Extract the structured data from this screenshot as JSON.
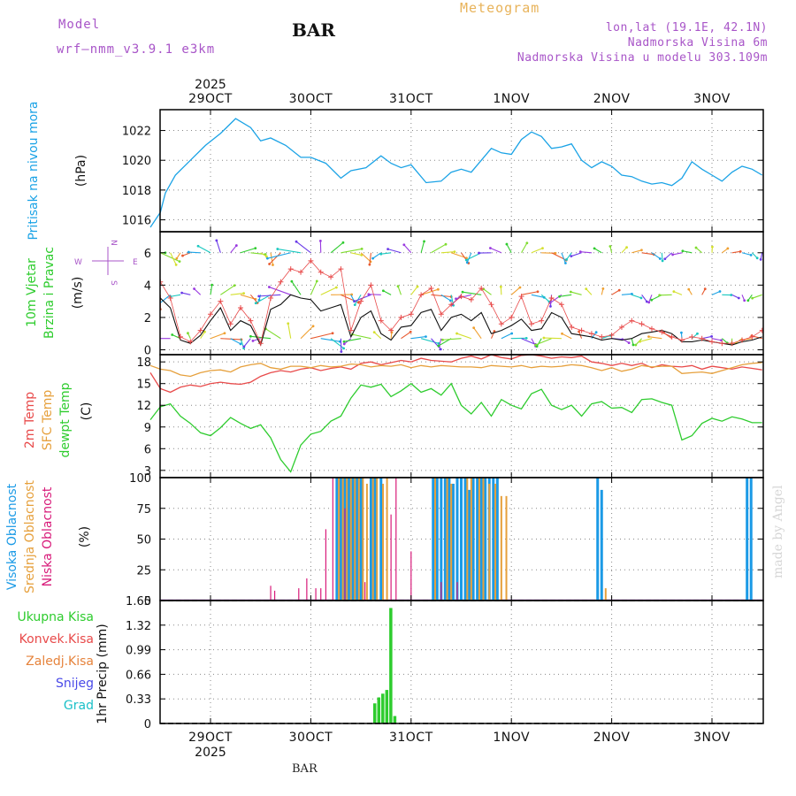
{
  "header": {
    "model_label": "Model",
    "model_name": "wrf—nmm_v3.9.1  e3km",
    "station": "BAR",
    "title": "Meteogram",
    "location": "lon,lat (19.1E, 42.1N)",
    "elevation": "Nadmorska Visina 6m",
    "model_elevation": "Nadmorska Visina u modelu 303.109m",
    "year_top": "2025",
    "year_bottom": "2025",
    "footer_station": "BAR",
    "watermark": "made by Angel"
  },
  "colors": {
    "pressure": "#1ba3e6",
    "temp": "#e84a4a",
    "sfc_temp": "#e6a03c",
    "dewpt": "#2ecc2e",
    "high_cloud": "#1b9ae6",
    "mid_cloud": "#e6a03c",
    "low_cloud": "#d81b7a",
    "precip": "#2ecc2e",
    "wind_speed": "#111111",
    "gust": "#e84a4a"
  },
  "chart_data": [
    {
      "type": "line",
      "id": "pressure",
      "ylabel_left": "Pritisak na nivou mora",
      "unit": "(hPa)",
      "ylim": [
        1015.2,
        1023.4
      ],
      "yticks": [
        "1016",
        "1018",
        "1020",
        "1022"
      ],
      "x_dates": [
        "29OCT",
        "30OCT",
        "31OCT",
        "1NOV",
        "2NOV",
        "3NOV"
      ],
      "x": [
        -0.6,
        -0.5,
        -0.45,
        -0.35,
        -0.2,
        -0.05,
        0.1,
        0.25,
        0.4,
        0.5,
        0.6,
        0.75,
        0.9,
        1.0,
        1.15,
        1.3,
        1.4,
        1.55,
        1.7,
        1.8,
        1.9,
        2.0,
        2.15,
        2.3,
        2.4,
        2.5,
        2.6,
        2.7,
        2.8,
        2.9,
        3.0,
        3.1,
        3.2,
        3.3,
        3.4,
        3.5,
        3.6,
        3.7,
        3.8,
        3.9,
        4.0,
        4.1,
        4.2,
        4.3,
        4.4,
        4.5,
        4.6,
        4.7,
        4.8,
        4.9,
        5.0,
        5.1,
        5.2,
        5.3,
        5.4,
        5.5
      ],
      "values": [
        1015.5,
        1016.5,
        1017.8,
        1019.0,
        1020.0,
        1021.0,
        1021.8,
        1022.8,
        1022.2,
        1021.3,
        1021.5,
        1021.0,
        1020.2,
        1020.2,
        1019.8,
        1018.8,
        1019.3,
        1019.5,
        1020.3,
        1019.8,
        1019.5,
        1019.7,
        1018.5,
        1018.6,
        1019.2,
        1019.4,
        1019.2,
        1020.0,
        1020.8,
        1020.5,
        1020.4,
        1021.4,
        1021.9,
        1021.6,
        1020.8,
        1020.9,
        1021.1,
        1020.0,
        1019.5,
        1019.9,
        1019.6,
        1019.0,
        1018.9,
        1018.6,
        1018.4,
        1018.5,
        1018.3,
        1018.8,
        1019.9,
        1019.4,
        1019.0,
        1018.6,
        1019.2,
        1019.6,
        1019.4,
        1019.0
      ]
    },
    {
      "type": "line",
      "id": "wind",
      "ylabel_left": [
        "10m Vjetar",
        "Brzina i Pravac"
      ],
      "unit": "(m/s)",
      "ylim": [
        -0.3,
        7.3
      ],
      "yticks": [
        "0",
        "2",
        "4",
        "6"
      ],
      "compass": {
        "north": "N",
        "south": "S",
        "west": "W",
        "east": "E"
      },
      "x": [
        -0.6,
        -0.5,
        -0.4,
        -0.3,
        -0.2,
        -0.1,
        0.0,
        0.1,
        0.2,
        0.3,
        0.4,
        0.5,
        0.6,
        0.7,
        0.8,
        0.9,
        1.0,
        1.1,
        1.2,
        1.3,
        1.4,
        1.5,
        1.6,
        1.7,
        1.8,
        1.9,
        2.0,
        2.1,
        2.2,
        2.3,
        2.4,
        2.5,
        2.6,
        2.7,
        2.8,
        2.9,
        3.0,
        3.1,
        3.2,
        3.3,
        3.4,
        3.5,
        3.6,
        3.7,
        3.8,
        3.9,
        4.0,
        4.1,
        4.2,
        4.3,
        4.4,
        4.5,
        4.6,
        4.7,
        4.8,
        4.9,
        5.0,
        5.1,
        5.2,
        5.3,
        5.4,
        5.5
      ],
      "series": [
        {
          "name": "speed",
          "values": [
            1.5,
            3.2,
            2.6,
            0.6,
            0.4,
            0.9,
            1.8,
            2.6,
            1.2,
            1.8,
            1.5,
            0.3,
            2.5,
            2.8,
            3.4,
            3.2,
            3.1,
            2.4,
            2.6,
            2.8,
            0.8,
            2.0,
            2.4,
            1.0,
            0.6,
            1.4,
            1.5,
            2.3,
            2.5,
            1.2,
            2.0,
            2.2,
            1.8,
            2.3,
            1.0,
            1.2,
            1.5,
            1.9,
            1.2,
            1.3,
            2.3,
            2.0,
            1.0,
            0.9,
            0.8,
            0.6,
            0.7,
            0.6,
            0.7,
            1.0,
            1.1,
            1.2,
            1.0,
            0.5,
            0.5,
            0.6,
            0.5,
            0.4,
            0.3,
            0.5,
            0.6,
            0.8
          ]
        },
        {
          "name": "gust",
          "values": [
            2.0,
            4.2,
            3.2,
            0.8,
            0.5,
            1.2,
            2.2,
            3.0,
            1.6,
            2.6,
            1.8,
            0.4,
            3.2,
            4.2,
            5.0,
            4.8,
            5.5,
            4.8,
            4.5,
            5.0,
            1.2,
            3.0,
            4.0,
            1.8,
            1.2,
            2.0,
            2.2,
            3.4,
            3.8,
            2.2,
            2.8,
            3.3,
            3.1,
            3.8,
            2.8,
            1.6,
            2.0,
            3.3,
            1.6,
            1.8,
            3.2,
            2.8,
            1.4,
            1.2,
            1.0,
            0.8,
            0.9,
            1.4,
            1.8,
            1.6,
            1.3,
            1.1,
            0.8,
            0.6,
            0.8,
            0.7,
            0.5,
            0.4,
            0.4,
            0.6,
            0.8,
            1.2
          ]
        }
      ],
      "direction_rows": [
        {
          "row": "6 m/s level",
          "y": 6
        },
        {
          "row": "3.4 m/s level",
          "y": 3.4
        },
        {
          "row": "0.7 m/s level",
          "y": 0.7
        }
      ]
    },
    {
      "type": "line",
      "id": "temperature",
      "ylabel_left": [
        "2m Temp",
        "SFC Temp",
        "dewpt Temp"
      ],
      "unit": "(C)",
      "ylim": [
        2,
        19
      ],
      "yticks": [
        "3",
        "6",
        "9",
        "12",
        "15",
        "18"
      ],
      "x": [
        -0.6,
        -0.5,
        -0.4,
        -0.3,
        -0.2,
        -0.1,
        0.0,
        0.1,
        0.2,
        0.3,
        0.4,
        0.5,
        0.6,
        0.7,
        0.8,
        0.9,
        1.0,
        1.1,
        1.2,
        1.3,
        1.4,
        1.5,
        1.6,
        1.7,
        1.8,
        1.9,
        2.0,
        2.1,
        2.2,
        2.3,
        2.4,
        2.5,
        2.6,
        2.7,
        2.8,
        2.9,
        3.0,
        3.1,
        3.2,
        3.3,
        3.4,
        3.5,
        3.6,
        3.7,
        3.8,
        3.9,
        4.0,
        4.1,
        4.2,
        4.3,
        4.4,
        4.5,
        4.6,
        4.7,
        4.8,
        4.9,
        5.0,
        5.1,
        5.2,
        5.3,
        5.4,
        5.5
      ],
      "series": [
        {
          "name": "2m Temp",
          "values": [
            16.5,
            14.3,
            13.8,
            14.5,
            14.8,
            14.6,
            15.0,
            15.2,
            15.0,
            14.9,
            15.2,
            16.0,
            16.5,
            16.8,
            16.6,
            17.0,
            17.2,
            16.8,
            17.1,
            17.3,
            17.0,
            17.8,
            18.0,
            17.6,
            17.9,
            18.2,
            18.0,
            18.5,
            18.2,
            18.1,
            18.0,
            18.5,
            18.8,
            18.4,
            19.0,
            18.6,
            18.4,
            18.9,
            19.0,
            18.8,
            18.5,
            18.7,
            18.6,
            18.8,
            18.0,
            17.8,
            17.5,
            17.8,
            17.5,
            17.8,
            17.2,
            17.6,
            17.4,
            17.3,
            17.5,
            17.0,
            17.4,
            17.2,
            17.0,
            17.3,
            17.1,
            16.9
          ]
        },
        {
          "name": "SFC Temp",
          "values": [
            17.5,
            17.0,
            16.8,
            16.2,
            16.0,
            16.5,
            16.8,
            16.9,
            16.6,
            17.3,
            17.6,
            17.8,
            17.2,
            17.0,
            17.4,
            17.4,
            17.2,
            17.5,
            17.3,
            17.4,
            17.7,
            17.6,
            17.3,
            17.5,
            17.4,
            17.6,
            17.2,
            17.5,
            17.3,
            17.5,
            17.4,
            17.3,
            17.3,
            17.2,
            17.5,
            17.4,
            17.3,
            17.5,
            17.2,
            17.4,
            17.3,
            17.4,
            17.6,
            17.5,
            17.2,
            16.8,
            17.2,
            16.7,
            17.0,
            17.5,
            17.3,
            17.4,
            17.4,
            16.4,
            16.5,
            16.6,
            16.4,
            16.8,
            17.2,
            17.6,
            17.8,
            17.9
          ]
        },
        {
          "name": "dewpt Temp",
          "values": [
            10.0,
            11.8,
            12.2,
            10.5,
            9.5,
            8.2,
            7.8,
            8.9,
            10.3,
            9.5,
            8.8,
            9.3,
            7.5,
            4.5,
            2.8,
            6.5,
            8.0,
            8.4,
            9.8,
            10.5,
            13.0,
            14.8,
            14.5,
            14.9,
            13.2,
            14.0,
            15.0,
            13.8,
            14.3,
            13.4,
            15.0,
            12.0,
            10.8,
            12.4,
            10.5,
            12.8,
            12.0,
            11.5,
            13.6,
            14.2,
            12.0,
            11.4,
            12.0,
            10.5,
            12.2,
            12.5,
            11.6,
            11.7,
            11.0,
            12.8,
            12.9,
            12.4,
            12.0,
            7.2,
            7.8,
            9.5,
            10.2,
            9.8,
            10.4,
            10.1,
            9.6,
            9.6
          ]
        }
      ]
    },
    {
      "type": "bar",
      "id": "cloud_cover",
      "ylabel_left": [
        "Visoka Oblacnost",
        "Srednja Oblacnost",
        "Niska Oblacnost"
      ],
      "unit": "(%)",
      "ylim": [
        0,
        100
      ],
      "yticks": [
        "0",
        "25",
        "50",
        "75",
        "100"
      ],
      "series": [
        {
          "name": "Visoka Oblacnost",
          "x": [
            1.26,
            1.3,
            1.34,
            1.38,
            1.42,
            1.46,
            1.5,
            1.6,
            1.64,
            1.7,
            2.22,
            2.26,
            2.3,
            2.34,
            2.38,
            2.42,
            2.46,
            2.5,
            2.54,
            2.58,
            2.62,
            2.66,
            2.7,
            2.74,
            2.78,
            2.82,
            2.86,
            3.86,
            3.9,
            5.35,
            5.39
          ],
          "values": [
            100,
            100,
            100,
            100,
            100,
            100,
            100,
            100,
            100,
            100,
            100,
            100,
            100,
            100,
            100,
            95,
            100,
            100,
            100,
            90,
            100,
            100,
            100,
            100,
            100,
            100,
            100,
            100,
            90,
            100,
            100
          ]
        },
        {
          "name": "Srednja Oblacnost",
          "x": [
            1.28,
            1.32,
            1.36,
            1.4,
            1.44,
            1.48,
            1.52,
            1.56,
            1.62,
            1.66,
            1.72,
            1.76,
            2.24,
            2.36,
            2.4,
            2.56,
            2.6,
            2.68,
            2.72,
            2.78,
            2.84,
            2.9,
            2.95,
            3.94
          ],
          "values": [
            100,
            100,
            100,
            100,
            100,
            100,
            100,
            95,
            100,
            100,
            95,
            100,
            100,
            100,
            95,
            100,
            100,
            100,
            100,
            95,
            95,
            85,
            85,
            10
          ]
        },
        {
          "name": "Niska Oblacnost",
          "x": [
            0.6,
            0.64,
            0.88,
            0.96,
            1.05,
            1.1,
            1.15,
            1.22,
            1.34,
            1.54,
            1.8,
            1.85,
            2.0,
            2.3,
            2.46
          ],
          "values": [
            12,
            8,
            10,
            18,
            10,
            10,
            58,
            100,
            75,
            15,
            70,
            100,
            40,
            15,
            15
          ]
        }
      ]
    },
    {
      "type": "bar",
      "id": "precipitation",
      "ylabel_left": [
        "Ukupna  Kisa",
        "Konvek.Kisa",
        "Zaledj.Kisa",
        "Snijeg",
        "Grad"
      ],
      "ylabel_colors": [
        "#2ecc2e",
        "#e84a4a",
        "#e6833c",
        "#4a4ae8",
        "#1bc0c8"
      ],
      "unit": "1hr Precip (mm)",
      "ylim": [
        0,
        1.65
      ],
      "yticks": [
        "0",
        "0.33",
        "0.66",
        "0.99",
        "1.32",
        "1.65"
      ],
      "series": [
        {
          "name": "Ukupna Kisa",
          "x": [
            1.64,
            1.68,
            1.72,
            1.76,
            1.8,
            1.84
          ],
          "values": [
            0.27,
            0.35,
            0.4,
            0.45,
            1.55,
            0.1
          ]
        }
      ]
    }
  ]
}
